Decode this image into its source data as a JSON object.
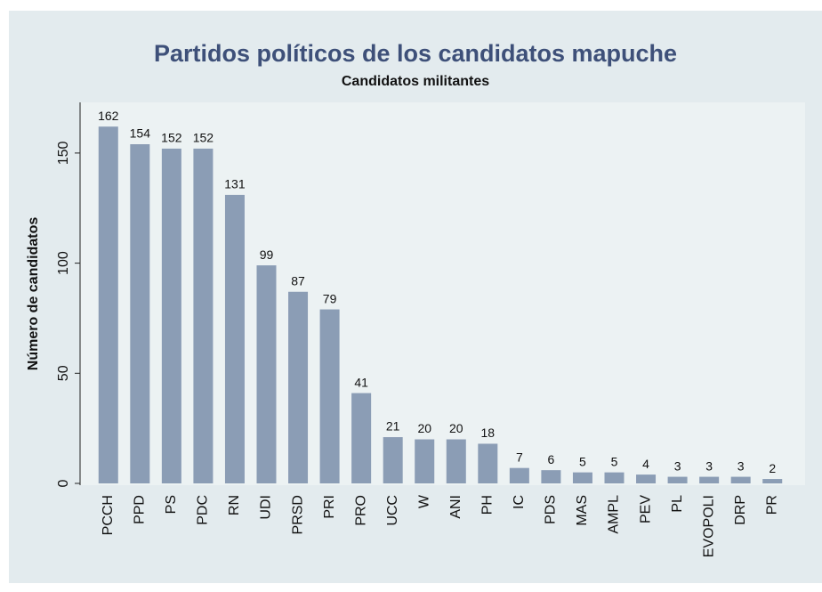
{
  "chart_data": {
    "type": "bar",
    "title": "Partidos políticos de los candidatos mapuche",
    "subtitle": "Candidatos militantes",
    "y_label": "Número de candidatos",
    "categories": [
      "PCCH",
      "PPD",
      "PS",
      "PDC",
      "RN",
      "UDI",
      "PRSD",
      "PRI",
      "PRO",
      "UCC",
      "W",
      "ANI",
      "PH",
      "IC",
      "PDS",
      "MAS",
      "AMPL",
      "PEV",
      "PL",
      "EVOPOLI",
      "DRP",
      "PR"
    ],
    "values": [
      162,
      154,
      152,
      152,
      131,
      99,
      87,
      79,
      41,
      21,
      20,
      20,
      18,
      7,
      6,
      5,
      5,
      4,
      3,
      3,
      3,
      2
    ],
    "color": "#8b9db5",
    "ylim": [
      0,
      173
    ],
    "yticks": [
      0,
      50,
      100,
      150
    ],
    "grid": false
  }
}
